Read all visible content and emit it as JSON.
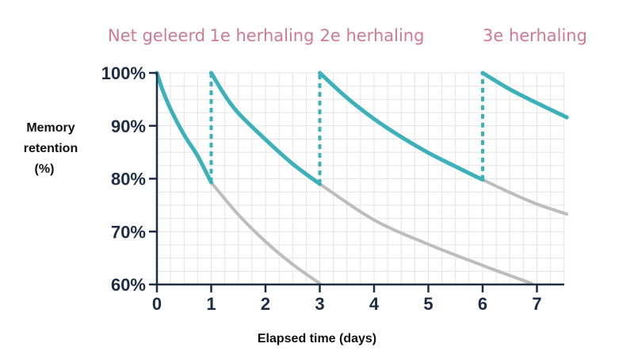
{
  "chart_data": {
    "type": "line",
    "xlabel": "Elapsed time (days)",
    "ylabel_lines": [
      "Memory",
      "retention",
      "(%)"
    ],
    "xlim": [
      0,
      7.55
    ],
    "ylim": [
      60,
      100
    ],
    "x_ticks": [
      0,
      1,
      2,
      3,
      4,
      5,
      6,
      7
    ],
    "x_tick_labels": [
      "0",
      "1",
      "2",
      "3",
      "4",
      "5",
      "6",
      "7"
    ],
    "y_ticks": [
      60,
      70,
      80,
      90,
      100
    ],
    "y_tick_labels": [
      "60%",
      "70%",
      "80%",
      "90%",
      "100%"
    ],
    "grid": true,
    "annotations": [
      {
        "text": "Net geleerd",
        "x": 0
      },
      {
        "text": "1e herhaling",
        "x": 1
      },
      {
        "text": "2e herhaling",
        "x": 3
      },
      {
        "text": "3e herhaling",
        "x": 6
      }
    ],
    "colors": {
      "retention": "#3cb1ba",
      "decay": "#bdbdbd",
      "axis": "#1e2d44",
      "annotation": "#d07a92",
      "grid": "#e4e4e4"
    },
    "series": [
      {
        "role": "retention",
        "points": [
          [
            0,
            100
          ],
          [
            0.1,
            96.9
          ],
          [
            0.25,
            93.2
          ],
          [
            0.5,
            88.3
          ],
          [
            0.75,
            84.3
          ],
          [
            1,
            79.3
          ]
        ]
      },
      {
        "role": "retention",
        "points": [
          [
            1,
            100
          ],
          [
            1.25,
            95.8
          ],
          [
            1.5,
            92.4
          ],
          [
            2,
            87.4
          ],
          [
            2.5,
            82.8
          ],
          [
            3,
            79.0
          ]
        ]
      },
      {
        "role": "retention",
        "points": [
          [
            3,
            100
          ],
          [
            3.5,
            95.3
          ],
          [
            4,
            91.3
          ],
          [
            4.5,
            87.9
          ],
          [
            5,
            84.9
          ],
          [
            5.5,
            82.3
          ],
          [
            6,
            79.8
          ]
        ]
      },
      {
        "role": "retention",
        "points": [
          [
            6,
            100
          ],
          [
            6.5,
            96.9
          ],
          [
            7,
            94.3
          ],
          [
            7.55,
            91.6
          ]
        ]
      },
      {
        "role": "decay",
        "points": [
          [
            1,
            79.3
          ],
          [
            1.5,
            73.2
          ],
          [
            2,
            68.1
          ],
          [
            2.5,
            63.8
          ],
          [
            3,
            60.2
          ]
        ]
      },
      {
        "role": "decay",
        "points": [
          [
            3,
            79.0
          ],
          [
            4,
            72.2
          ],
          [
            5,
            67.6
          ],
          [
            6,
            63.6
          ],
          [
            6.9,
            60.2
          ]
        ]
      },
      {
        "role": "decay",
        "points": [
          [
            6,
            79.8
          ],
          [
            6.5,
            77.4
          ],
          [
            7,
            75.2
          ],
          [
            7.55,
            73.3
          ]
        ]
      }
    ],
    "review_markers": [
      {
        "x": 1,
        "from": 79.3,
        "to": 100
      },
      {
        "x": 3,
        "from": 79.0,
        "to": 100
      },
      {
        "x": 6,
        "from": 79.8,
        "to": 100
      }
    ]
  }
}
